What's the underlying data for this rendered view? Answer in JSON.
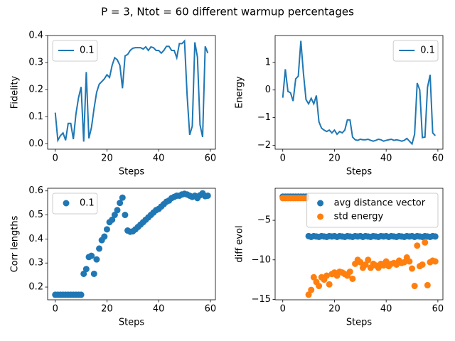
{
  "title": "P = 3, Ntot = 60 different warmup percentages",
  "chart_data": [
    {
      "type": "line",
      "xlabel": "Steps",
      "ylabel": "Fidelity",
      "legend": "upper left",
      "xlim": [
        -2.95,
        61.95
      ],
      "xticks": [
        0,
        20,
        40,
        60
      ],
      "ylim": [
        -0.02,
        0.4
      ],
      "yticks": [
        {
          "value": 0,
          "label": "0.0"
        },
        0.1,
        0.2,
        0.3,
        0.4
      ],
      "x": [
        0,
        1,
        2,
        3,
        4,
        5,
        6,
        7,
        8,
        9,
        10,
        11,
        12,
        13,
        14,
        15,
        16,
        17,
        18,
        19,
        20,
        21,
        22,
        23,
        24,
        25,
        26,
        27,
        28,
        29,
        30,
        31,
        32,
        33,
        34,
        35,
        36,
        37,
        38,
        39,
        40,
        41,
        42,
        43,
        44,
        45,
        46,
        47,
        48,
        49,
        50,
        51,
        52,
        53,
        54,
        55,
        56,
        57,
        58,
        59
      ],
      "series": [
        {
          "name": "0.1",
          "color": "#1f77b4",
          "values": [
            0.115,
            0.013,
            0.03,
            0.04,
            0.013,
            0.075,
            0.075,
            0.017,
            0.11,
            0.17,
            0.21,
            0.008,
            0.265,
            0.02,
            0.06,
            0.13,
            0.19,
            0.22,
            0.23,
            0.24,
            0.255,
            0.245,
            0.29,
            0.318,
            0.31,
            0.29,
            0.205,
            0.325,
            0.33,
            0.345,
            0.353,
            0.355,
            0.355,
            0.355,
            0.35,
            0.358,
            0.345,
            0.358,
            0.355,
            0.345,
            0.345,
            0.335,
            0.345,
            0.36,
            0.36,
            0.345,
            0.345,
            0.318,
            0.37,
            0.37,
            0.38,
            0.18,
            0.033,
            0.065,
            0.375,
            0.32,
            0.07,
            0.025,
            0.36,
            0.335
          ]
        }
      ]
    },
    {
      "type": "line",
      "xlabel": "Steps",
      "ylabel": "Energy",
      "legend": "upper right",
      "xlim": [
        -2.95,
        61.95
      ],
      "xticks": [
        0,
        20,
        40,
        60
      ],
      "ylim": [
        -2.14,
        1.97
      ],
      "yticks": [
        {
          "value": -2,
          "label": "−2"
        },
        {
          "value": -1,
          "label": "−1"
        },
        0,
        1
      ],
      "x": [
        0,
        1,
        2,
        3,
        4,
        5,
        6,
        7,
        8,
        9,
        10,
        11,
        12,
        13,
        14,
        15,
        16,
        17,
        18,
        19,
        20,
        21,
        22,
        23,
        24,
        25,
        26,
        27,
        28,
        29,
        30,
        31,
        32,
        33,
        34,
        35,
        36,
        37,
        38,
        39,
        40,
        41,
        42,
        43,
        44,
        45,
        46,
        47,
        48,
        49,
        50,
        51,
        52,
        53,
        54,
        55,
        56,
        57,
        58,
        59
      ],
      "series": [
        {
          "name": "0.1",
          "color": "#1f77b4",
          "values": [
            -0.28,
            0.75,
            -0.05,
            -0.1,
            -0.4,
            0.4,
            0.5,
            1.78,
            0.6,
            -0.35,
            -0.5,
            -0.3,
            -0.5,
            -0.2,
            -1.15,
            -1.38,
            -1.45,
            -1.5,
            -1.45,
            -1.55,
            -1.45,
            -1.6,
            -1.5,
            -1.55,
            -1.45,
            -1.08,
            -1.08,
            -1.7,
            -1.8,
            -1.82,
            -1.78,
            -1.8,
            -1.8,
            -1.78,
            -1.82,
            -1.85,
            -1.82,
            -1.78,
            -1.8,
            -1.85,
            -1.82,
            -1.8,
            -1.78,
            -1.82,
            -1.8,
            -1.82,
            -1.85,
            -1.82,
            -1.75,
            -1.85,
            -1.95,
            -1.6,
            0.25,
            0.0,
            -1.72,
            -1.7,
            0.1,
            0.55,
            -1.55,
            -1.65
          ]
        }
      ]
    },
    {
      "type": "scatter",
      "xlabel": "Steps",
      "ylabel": "Corr lengths",
      "legend": "upper left",
      "xlim": [
        -2.95,
        61.95
      ],
      "xticks": [
        0,
        20,
        40,
        60
      ],
      "ylim": [
        0.147,
        0.611
      ],
      "yticks": [
        0.2,
        0.3,
        0.4,
        0.5,
        0.6
      ],
      "x": [
        0,
        1,
        2,
        3,
        4,
        5,
        6,
        7,
        8,
        9,
        10,
        11,
        12,
        13,
        14,
        15,
        16,
        17,
        18,
        19,
        20,
        21,
        22,
        23,
        24,
        25,
        26,
        27,
        28,
        29,
        30,
        31,
        32,
        33,
        34,
        35,
        36,
        37,
        38,
        39,
        40,
        41,
        42,
        43,
        44,
        45,
        46,
        47,
        48,
        49,
        50,
        51,
        52,
        53,
        54,
        55,
        56,
        57,
        58,
        59
      ],
      "series": [
        {
          "name": "0.1",
          "color": "#1f77b4",
          "values": [
            0.168,
            0.168,
            0.168,
            0.168,
            0.168,
            0.168,
            0.168,
            0.168,
            0.168,
            0.168,
            0.168,
            0.255,
            0.275,
            0.325,
            0.33,
            0.255,
            0.315,
            0.36,
            0.395,
            0.41,
            0.44,
            0.47,
            0.48,
            0.5,
            0.52,
            0.55,
            0.572,
            0.5,
            0.435,
            0.43,
            0.432,
            0.44,
            0.45,
            0.46,
            0.47,
            0.48,
            0.49,
            0.5,
            0.51,
            0.52,
            0.525,
            0.535,
            0.545,
            0.555,
            0.56,
            0.57,
            0.575,
            0.58,
            0.58,
            0.585,
            0.588,
            0.585,
            0.58,
            0.575,
            0.58,
            0.57,
            0.582,
            0.59,
            0.578,
            0.58
          ]
        }
      ]
    },
    {
      "type": "scatter",
      "xlabel": "Steps",
      "ylabel": "diff evol",
      "legend": "upper right",
      "xlim": [
        -2.95,
        61.95
      ],
      "xticks": [
        0,
        20,
        40,
        60
      ],
      "ylim": [
        -15.05,
        -0.95
      ],
      "yticks": [
        {
          "value": -15,
          "label": "−15"
        },
        {
          "value": -10,
          "label": "−10"
        },
        {
          "value": -5,
          "label": "−5"
        }
      ],
      "x": [
        0,
        1,
        2,
        3,
        4,
        5,
        6,
        7,
        8,
        9,
        10,
        11,
        12,
        13,
        14,
        15,
        16,
        17,
        18,
        19,
        20,
        21,
        22,
        23,
        24,
        25,
        26,
        27,
        28,
        29,
        30,
        31,
        32,
        33,
        34,
        35,
        36,
        37,
        38,
        39,
        40,
        41,
        42,
        43,
        44,
        45,
        46,
        47,
        48,
        49,
        50,
        51,
        52,
        53,
        54,
        55,
        56,
        57,
        58,
        59
      ],
      "series": [
        {
          "name": "avg distance vector",
          "color": "#1f77b4",
          "values": [
            -2.0,
            -2.0,
            -2.0,
            -2.0,
            -2.0,
            -2.0,
            -2.0,
            -2.0,
            -2.0,
            -2.0,
            -7.0,
            -7.1,
            -7.0,
            -7.05,
            -7.1,
            -7.0,
            -7.05,
            -7.1,
            -7.0,
            -7.05,
            -7.0,
            -7.1,
            -7.0,
            -7.05,
            -7.1,
            -7.0,
            -7.05,
            -7.1,
            -7.0,
            -7.05,
            -7.0,
            -7.1,
            -7.0,
            -7.05,
            -7.1,
            -7.0,
            -7.05,
            -7.1,
            -7.0,
            -7.05,
            -7.0,
            -7.1,
            -7.0,
            -7.05,
            -7.1,
            -7.0,
            -7.05,
            -7.1,
            -7.0,
            -7.05,
            -7.0,
            -7.1,
            -7.0,
            -7.05,
            -7.1,
            -7.0,
            -7.05,
            -7.1,
            -7.0,
            -7.05
          ]
        },
        {
          "name": "std energy",
          "color": "#ff7f0e",
          "values": [
            -2.2,
            -2.2,
            -2.2,
            -2.2,
            -2.2,
            -2.2,
            -2.2,
            -2.2,
            -2.2,
            -2.2,
            -14.4,
            -13.8,
            -12.2,
            -12.8,
            -13.3,
            -12.2,
            -12.5,
            -12.0,
            -13.1,
            -11.8,
            -11.6,
            -12.0,
            -11.5,
            -11.6,
            -11.8,
            -12.0,
            -11.5,
            -12.4,
            -10.5,
            -10.0,
            -10.3,
            -11.0,
            -10.6,
            -10.0,
            -11.0,
            -10.5,
            -10.7,
            -11.0,
            -10.5,
            -10.7,
            -10.2,
            -10.8,
            -10.5,
            -10.4,
            -10.6,
            -10.1,
            -10.4,
            -10.3,
            -9.7,
            -10.2,
            -11.1,
            -13.3,
            -8.2,
            -10.8,
            -10.6,
            -7.8,
            -13.2,
            -10.3,
            -10.1,
            -10.2
          ]
        }
      ]
    }
  ]
}
